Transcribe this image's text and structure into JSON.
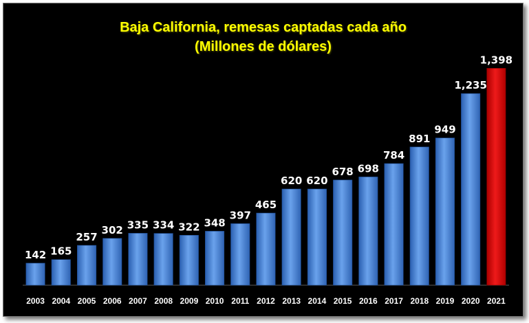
{
  "chart_data": {
    "type": "bar",
    "title": "Baja California, remesas captadas cada año",
    "subtitle": "(Millones de dólares)",
    "categories": [
      "2003",
      "2004",
      "2005",
      "2006",
      "2007",
      "2008",
      "2009",
      "2010",
      "2011",
      "2012",
      "2013",
      "2014",
      "2015",
      "2016",
      "2017",
      "2018",
      "2019",
      "2020",
      "2021"
    ],
    "values": [
      142,
      165,
      257,
      302,
      335,
      334,
      322,
      348,
      397,
      465,
      620,
      620,
      678,
      698,
      784,
      891,
      949,
      1235,
      1398
    ],
    "value_labels": [
      "142",
      "165",
      "257",
      "302",
      "335",
      "334",
      "322",
      "348",
      "397",
      "465",
      "620",
      "620",
      "678",
      "698",
      "784",
      "891",
      "949",
      "1,235",
      "1,398"
    ],
    "xlabel": "",
    "ylabel": "",
    "ylim": [
      0,
      1550
    ],
    "grid": false,
    "legend": "none",
    "colors": {
      "bar": "#4f86d6",
      "highlight": "#dd1111",
      "background": "#000000",
      "title": "#ffff00"
    },
    "highlight_category": "2021"
  }
}
